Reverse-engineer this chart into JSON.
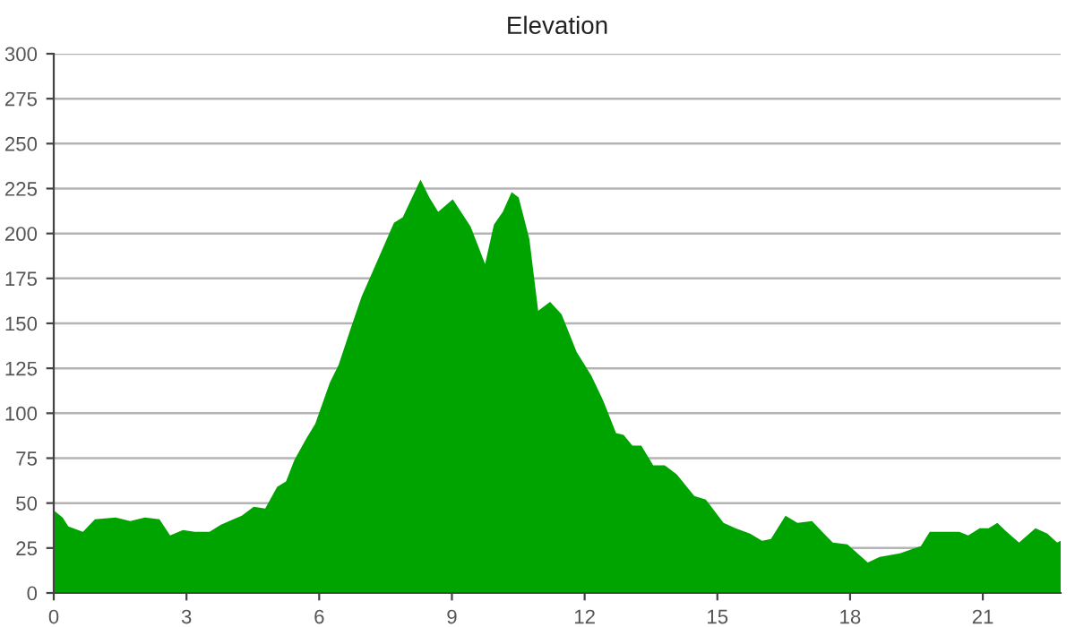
{
  "chart_data": {
    "type": "area",
    "title": "Elevation",
    "x": [
      0,
      0.2,
      0.33,
      0.66,
      0.93,
      1.4,
      1.73,
      2.06,
      2.39,
      2.63,
      2.92,
      3.19,
      3.52,
      3.78,
      4.25,
      4.52,
      4.78,
      5.05,
      5.25,
      5.44,
      5.71,
      5.91,
      6.24,
      6.44,
      6.71,
      6.96,
      7.23,
      7.69,
      7.89,
      8.29,
      8.49,
      8.69,
      9.02,
      9.42,
      9.75,
      9.95,
      10.15,
      10.35,
      10.51,
      10.75,
      10.95,
      11.22,
      11.48,
      11.82,
      12.15,
      12.42,
      12.71,
      12.88,
      13.08,
      13.28,
      13.55,
      13.81,
      14.08,
      14.48,
      14.74,
      15.14,
      15.41,
      15.74,
      16.01,
      16.21,
      16.54,
      16.81,
      17.14,
      17.41,
      17.61,
      17.94,
      18.4,
      18.67,
      19.13,
      19.47,
      19.6,
      19.8,
      20.13,
      20.47,
      20.67,
      20.93,
      21.13,
      21.33,
      21.54,
      21.82,
      22.19,
      22.46,
      22.68,
      22.76
    ],
    "series": [
      {
        "color": "#00a400",
        "values": [
          46,
          42,
          37,
          34,
          41,
          42,
          40,
          42,
          41,
          32,
          35,
          34,
          34,
          38,
          43,
          48,
          47,
          59,
          62,
          74,
          86,
          94,
          117,
          127,
          147,
          165,
          180,
          206,
          209,
          230,
          220,
          212,
          219,
          204,
          183,
          205,
          212,
          223,
          220,
          197,
          157,
          162,
          155,
          134,
          121,
          107,
          89,
          88,
          82,
          82,
          71,
          71,
          66,
          54,
          52,
          39,
          36,
          33,
          29,
          30,
          43,
          39,
          40,
          33,
          28,
          27,
          17,
          20,
          22,
          25,
          26,
          34,
          34,
          34,
          32,
          36,
          36,
          39,
          34,
          28,
          36,
          33,
          28,
          29
        ]
      }
    ],
    "xlim": [
      0,
      22.76
    ],
    "xticks": [
      0,
      3,
      6,
      9,
      12,
      15,
      18,
      21
    ],
    "ylim": [
      0,
      300
    ],
    "yticks": [
      0,
      25,
      50,
      75,
      100,
      125,
      150,
      175,
      200,
      225,
      250,
      275,
      300
    ],
    "grid": "y"
  }
}
